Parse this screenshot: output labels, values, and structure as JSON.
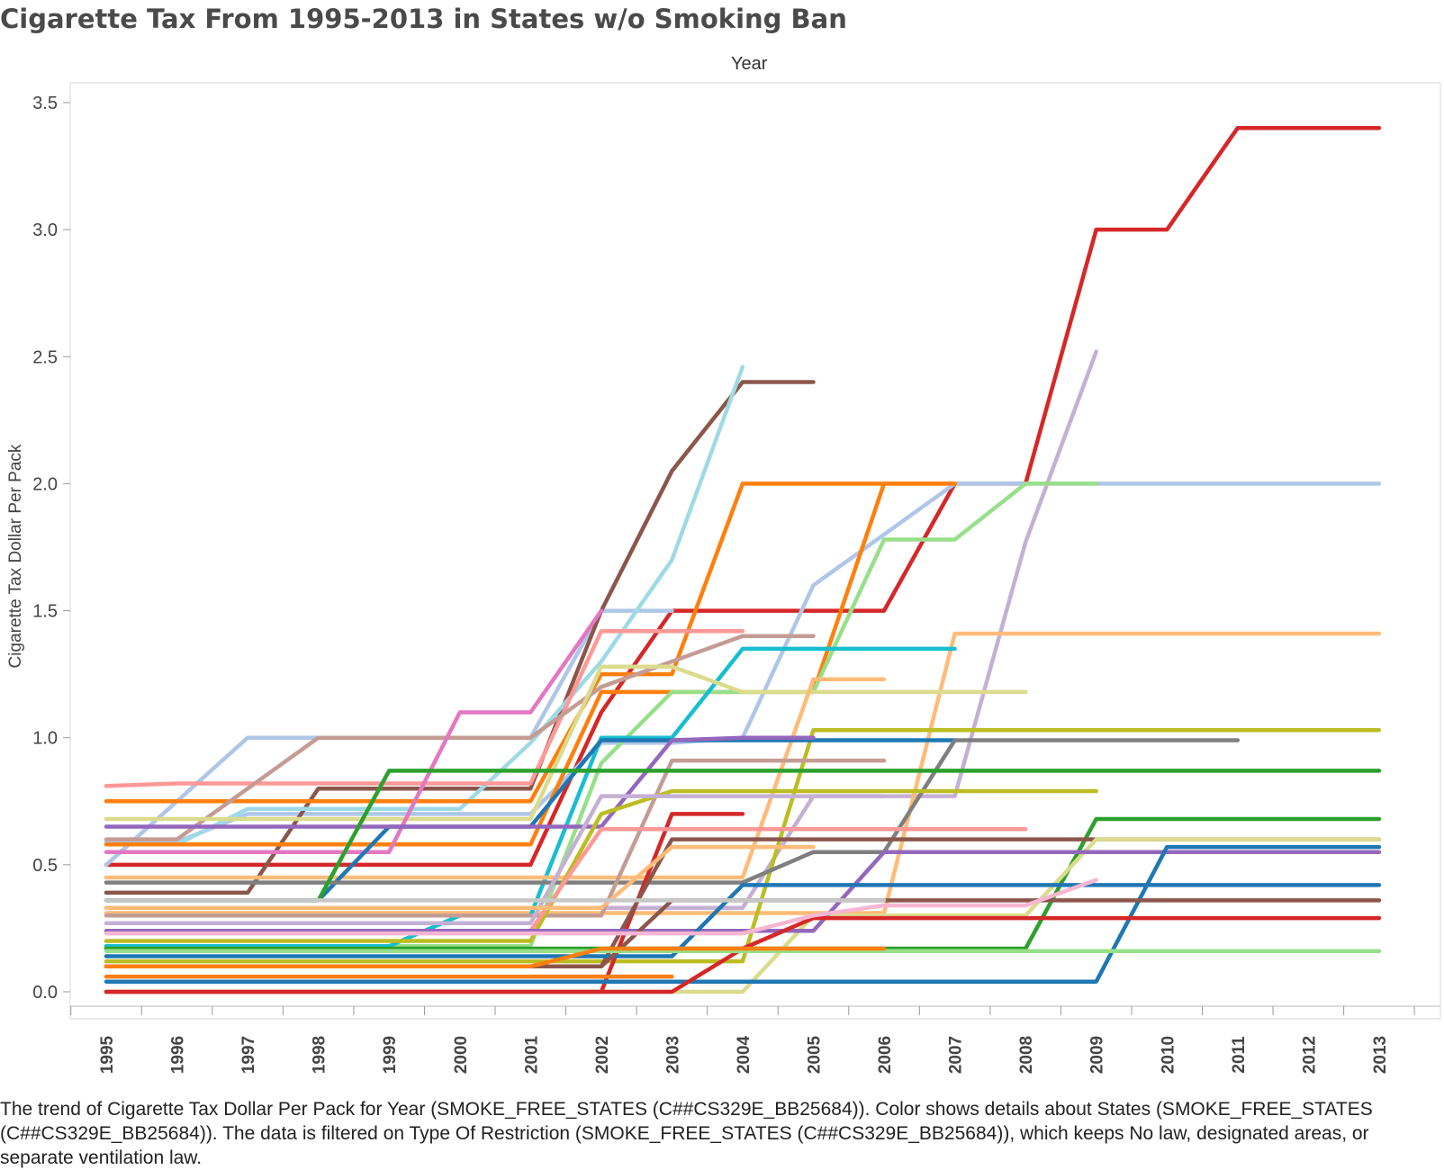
{
  "chart_data": {
    "type": "line",
    "title": "Cigarette Tax From 1995-2013 in States w/o Smoking Ban",
    "x_header": "Year",
    "ylabel": "Cigarette Tax Dollar Per Pack",
    "ylim": [
      0,
      3.5
    ],
    "yticks": [
      "0.0",
      "0.5",
      "1.0",
      "1.5",
      "2.0",
      "2.5",
      "3.0",
      "3.5"
    ],
    "x": [
      "1995",
      "1996",
      "1997",
      "1998",
      "1999",
      "2000",
      "2001",
      "2002",
      "2003",
      "2004",
      "2005",
      "2006",
      "2007",
      "2008",
      "2009",
      "2010",
      "2011",
      "2012",
      "2013"
    ],
    "legend": "none",
    "grid": false,
    "series": [
      {
        "color": "#d62728",
        "values": [
          0.5,
          0.5,
          0.5,
          0.5,
          0.5,
          0.5,
          0.5,
          1.1,
          1.5,
          1.5,
          1.5,
          1.5,
          2.0,
          2.0,
          3.0,
          3.0,
          3.4,
          3.4,
          3.4
        ]
      },
      {
        "color": "#aec7e8",
        "values": [
          0.5,
          0.75,
          1.0,
          1.0,
          1.0,
          1.0,
          1.0,
          1.5,
          1.5,
          null,
          null,
          null,
          null,
          null,
          null,
          null,
          null,
          null,
          null
        ]
      },
      {
        "color": "#aec7e8",
        "values": [
          0.59,
          0.59,
          0.7,
          0.7,
          0.7,
          0.7,
          0.7,
          0.98,
          0.98,
          1.0,
          1.6,
          1.8,
          2.0,
          2.0,
          2.0,
          2.0,
          2.0,
          2.0,
          2.0
        ]
      },
      {
        "color": "#c5b0d5",
        "values": [
          0.33,
          0.33,
          0.33,
          0.33,
          0.33,
          0.33,
          0.33,
          0.33,
          0.33,
          0.33,
          0.77,
          0.77,
          0.77,
          1.77,
          2.52,
          null,
          null,
          null,
          null
        ]
      },
      {
        "color": "#8c564b",
        "values": [
          0.39,
          0.39,
          0.39,
          0.8,
          0.8,
          0.8,
          0.8,
          1.5,
          2.05,
          2.4,
          2.4,
          null,
          null,
          null,
          null,
          null,
          null,
          null,
          null
        ]
      },
      {
        "color": "#9edae5",
        "values": [
          0.58,
          0.58,
          0.72,
          0.72,
          0.72,
          0.72,
          0.98,
          1.3,
          1.7,
          2.46,
          null,
          null,
          null,
          null,
          null,
          null,
          null,
          null,
          null
        ]
      },
      {
        "color": "#ff7f0e",
        "values": [
          0.75,
          0.75,
          0.75,
          0.75,
          0.75,
          0.75,
          0.75,
          1.25,
          1.25,
          2.0,
          2.0,
          2.0,
          2.0,
          null,
          null,
          null,
          null,
          null,
          null
        ]
      },
      {
        "color": "#ff7f0e",
        "values": [
          0.58,
          0.58,
          0.58,
          0.58,
          0.58,
          0.58,
          0.58,
          1.18,
          1.18,
          1.18,
          1.18,
          2.0,
          2.0,
          null,
          null,
          null,
          null,
          null,
          null
        ]
      },
      {
        "color": "#98df8a",
        "values": [
          0.18,
          0.18,
          0.18,
          0.18,
          0.18,
          0.18,
          0.18,
          0.9,
          1.18,
          1.18,
          1.18,
          1.78,
          1.78,
          2.0,
          2.0,
          null,
          null,
          null,
          null
        ]
      },
      {
        "color": "#ffbb78",
        "values": [
          0.31,
          0.31,
          0.31,
          0.31,
          0.31,
          0.31,
          0.31,
          0.31,
          0.31,
          0.31,
          0.31,
          0.31,
          1.41,
          1.41,
          1.41,
          1.41,
          1.41,
          1.41,
          1.41
        ]
      },
      {
        "color": "#ff9896",
        "values": [
          0.81,
          0.82,
          0.82,
          0.82,
          0.82,
          0.82,
          0.82,
          1.42,
          1.42,
          1.42,
          null,
          null,
          null,
          null,
          null,
          null,
          null,
          null,
          null
        ]
      },
      {
        "color": "#c49c94",
        "values": [
          0.6,
          0.6,
          0.8,
          1.0,
          1.0,
          1.0,
          1.0,
          1.2,
          1.3,
          1.4,
          1.4,
          null,
          null,
          null,
          null,
          null,
          null,
          null,
          null
        ]
      },
      {
        "color": "#17becf",
        "values": [
          0.18,
          0.18,
          0.18,
          0.18,
          0.18,
          0.3,
          0.3,
          1.0,
          1.0,
          1.35,
          1.35,
          1.35,
          1.35,
          null,
          null,
          null,
          null,
          null,
          null
        ]
      },
      {
        "color": "#dbdb8d",
        "values": [
          0.68,
          0.68,
          0.68,
          0.68,
          0.68,
          0.68,
          0.68,
          1.28,
          1.28,
          1.18,
          1.18,
          1.18,
          1.18,
          1.18,
          null,
          null,
          null,
          null,
          null
        ]
      },
      {
        "color": "#ffbb78",
        "values": [
          0.45,
          0.45,
          0.45,
          0.45,
          0.45,
          0.45,
          0.45,
          0.45,
          0.45,
          0.45,
          1.23,
          1.23,
          null,
          null,
          null,
          null,
          null,
          null,
          null
        ]
      },
      {
        "color": "#e377c2",
        "values": [
          0.55,
          0.55,
          0.55,
          0.55,
          0.55,
          1.1,
          1.1,
          1.5,
          null,
          null,
          null,
          null,
          null,
          null,
          null,
          null,
          null,
          null,
          null
        ]
      },
      {
        "color": "#bcbd22",
        "values": [
          0.12,
          0.12,
          0.12,
          0.12,
          0.12,
          0.12,
          0.12,
          0.12,
          0.12,
          0.12,
          1.03,
          1.03,
          1.03,
          1.03,
          1.03,
          1.03,
          1.03,
          1.03,
          1.03
        ]
      },
      {
        "color": "#1f77b4",
        "values": [
          0.36,
          0.36,
          0.36,
          0.36,
          0.65,
          0.65,
          0.65,
          0.99,
          0.99,
          0.99,
          0.99,
          0.99,
          0.99,
          null,
          null,
          null,
          null,
          null,
          null
        ]
      },
      {
        "color": "#7f7f7f",
        "values": [
          0.43,
          0.43,
          0.43,
          0.43,
          0.43,
          0.43,
          0.43,
          0.43,
          0.43,
          0.43,
          0.55,
          0.55,
          0.99,
          0.99,
          0.99,
          0.99,
          0.99,
          null,
          null
        ]
      },
      {
        "color": "#9467bd",
        "values": [
          0.65,
          0.65,
          0.65,
          0.65,
          0.65,
          0.65,
          0.65,
          0.65,
          0.99,
          1.0,
          1.0,
          null,
          null,
          null,
          null,
          null,
          null,
          null,
          null
        ]
      },
      {
        "color": "#c49c94",
        "values": [
          0.3,
          0.3,
          0.3,
          0.3,
          0.3,
          0.3,
          0.3,
          0.3,
          0.91,
          0.91,
          0.91,
          0.91,
          null,
          null,
          null,
          null,
          null,
          null,
          null
        ]
      },
      {
        "color": "#2ca02c",
        "values": [
          0.36,
          0.36,
          0.36,
          0.36,
          0.87,
          0.87,
          0.87,
          0.87,
          0.87,
          0.87,
          0.87,
          0.87,
          0.87,
          0.87,
          0.87,
          0.87,
          0.87,
          0.87,
          0.87
        ]
      },
      {
        "color": "#bcbd22",
        "values": [
          0.2,
          0.2,
          0.2,
          0.2,
          0.2,
          0.2,
          0.2,
          0.7,
          0.79,
          0.79,
          0.79,
          0.79,
          0.79,
          0.79,
          0.79,
          null,
          null,
          null,
          null
        ]
      },
      {
        "color": "#c5b0d5",
        "values": [
          0.27,
          0.27,
          0.27,
          0.27,
          0.27,
          0.27,
          0.27,
          0.77,
          0.77,
          0.77,
          0.77,
          0.77,
          null,
          null,
          null,
          null,
          null,
          null,
          null
        ]
      },
      {
        "color": "#d62728",
        "values": [
          0.0,
          0.0,
          0.0,
          0.0,
          0.0,
          0.0,
          0.0,
          0.0,
          0.7,
          0.7,
          null,
          null,
          null,
          null,
          null,
          null,
          null,
          null,
          null
        ]
      },
      {
        "color": "#2ca02c",
        "values": [
          0.17,
          0.17,
          0.17,
          0.17,
          0.17,
          0.17,
          0.17,
          0.17,
          0.17,
          0.17,
          0.17,
          0.17,
          0.17,
          0.17,
          0.68,
          0.68,
          0.68,
          0.68,
          0.68
        ]
      },
      {
        "color": "#ff9896",
        "values": [
          0.24,
          0.24,
          0.24,
          0.24,
          0.24,
          0.24,
          0.24,
          0.64,
          0.64,
          0.64,
          0.64,
          0.64,
          0.64,
          0.64,
          null,
          null,
          null,
          null,
          null
        ]
      },
      {
        "color": "#8c564b",
        "values": [
          0.1,
          0.1,
          0.1,
          0.1,
          0.1,
          0.1,
          0.1,
          0.1,
          0.6,
          0.6,
          0.6,
          0.6,
          0.6,
          0.6,
          0.6,
          0.6,
          0.6,
          0.6,
          0.6
        ]
      },
      {
        "color": "#dbdb8d",
        "values": [
          0.0,
          0.0,
          0.0,
          0.0,
          0.0,
          0.0,
          0.0,
          0.0,
          0.0,
          0.0,
          0.3,
          0.3,
          0.3,
          0.3,
          0.6,
          0.6,
          0.6,
          0.6,
          0.6
        ]
      },
      {
        "color": "#9467bd",
        "values": [
          0.24,
          0.24,
          0.24,
          0.24,
          0.24,
          0.24,
          0.24,
          0.24,
          0.24,
          0.24,
          0.24,
          0.55,
          0.55,
          0.55,
          0.55,
          0.55,
          0.55,
          0.55,
          0.55
        ]
      },
      {
        "color": "#1f77b4",
        "values": [
          0.04,
          0.04,
          0.04,
          0.04,
          0.04,
          0.04,
          0.04,
          0.04,
          0.04,
          0.04,
          0.04,
          0.04,
          0.04,
          0.04,
          0.04,
          0.57,
          0.57,
          0.57,
          0.57
        ]
      },
      {
        "color": "#1f77b4",
        "values": [
          0.14,
          0.14,
          0.14,
          0.14,
          0.14,
          0.14,
          0.14,
          0.14,
          0.14,
          0.42,
          0.42,
          0.42,
          0.42,
          0.42,
          0.42,
          0.42,
          0.42,
          0.42,
          0.42
        ]
      },
      {
        "color": "#8c564b",
        "values": [
          0.1,
          0.1,
          0.1,
          0.1,
          0.1,
          0.1,
          0.1,
          0.1,
          0.36,
          0.36,
          0.36,
          0.36,
          0.36,
          0.36,
          0.36,
          0.36,
          0.36,
          0.36,
          0.36
        ]
      },
      {
        "color": "#d62728",
        "values": [
          0.0,
          0.0,
          0.0,
          0.0,
          0.0,
          0.0,
          0.0,
          0.0,
          0.0,
          0.17,
          0.29,
          0.29,
          0.29,
          0.29,
          0.29,
          0.29,
          0.29,
          0.29,
          0.29
        ]
      },
      {
        "color": "#98df8a",
        "values": [
          0.16,
          0.16,
          0.16,
          0.16,
          0.16,
          0.16,
          0.16,
          0.16,
          0.16,
          0.16,
          0.16,
          0.16,
          0.16,
          0.16,
          0.16,
          0.16,
          0.16,
          0.16,
          0.16
        ]
      },
      {
        "color": "#f7b6d2",
        "values": [
          0.23,
          0.23,
          0.23,
          0.23,
          0.23,
          0.23,
          0.23,
          0.23,
          0.23,
          0.23,
          0.3,
          0.34,
          0.34,
          0.34,
          0.44,
          null,
          null,
          null,
          null
        ]
      },
      {
        "color": "#ff7f0e",
        "values": [
          0.1,
          0.1,
          0.1,
          0.1,
          0.1,
          0.1,
          0.1,
          0.17,
          0.17,
          0.17,
          0.17,
          0.17,
          null,
          null,
          null,
          null,
          null,
          null,
          null
        ]
      },
      {
        "color": "#ffbb78",
        "values": [
          0.33,
          0.33,
          0.33,
          0.33,
          0.33,
          0.33,
          0.33,
          0.33,
          0.57,
          0.57,
          0.57,
          null,
          null,
          null,
          null,
          null,
          null,
          null,
          null
        ]
      },
      {
        "color": "#c7c7c7",
        "values": [
          0.36,
          0.36,
          0.36,
          0.36,
          0.36,
          0.36,
          0.36,
          0.36,
          0.36,
          0.36,
          0.36,
          0.36,
          null,
          null,
          null,
          null,
          null,
          null,
          null
        ]
      },
      {
        "color": "#ff7f0e",
        "values": [
          0.06,
          0.06,
          0.06,
          0.06,
          0.06,
          0.06,
          0.06,
          0.06,
          0.06,
          null,
          null,
          null,
          null,
          null,
          null,
          null,
          null,
          null,
          null
        ]
      }
    ],
    "caption": "The trend of Cigarette Tax Dollar Per Pack for Year (SMOKE_FREE_STATES (C##CS329E_BB25684)).  Color shows details about States (SMOKE_FREE_STATES (C##CS329E_BB25684)). The data is filtered on Type Of Restriction (SMOKE_FREE_STATES (C##CS329E_BB25684)), which keeps No law, designated areas, or separate ventilation law."
  }
}
